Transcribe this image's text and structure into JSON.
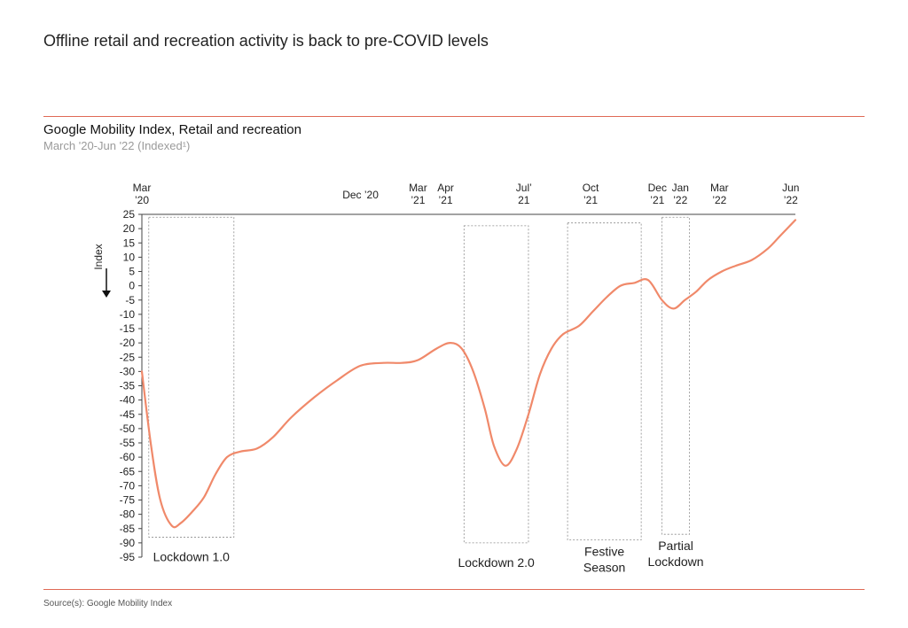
{
  "headline": "Offline retail and recreation activity is back to pre-COVID levels",
  "chart_title": "Google Mobility Index, Retail and recreation",
  "chart_subtitle": "March '20-Jun '22 (Indexed¹)",
  "source": "Source(s): Google Mobility Index",
  "colors": {
    "line": "#f0896a",
    "rule": "#e06a55",
    "box": "#8c8c8c"
  },
  "chart_data": {
    "type": "line",
    "ylabel": "Index",
    "ylim": [
      -95,
      25
    ],
    "yticks": [
      25,
      20,
      15,
      10,
      5,
      0,
      -5,
      -10,
      -15,
      -20,
      -25,
      -30,
      -35,
      -40,
      -45,
      -50,
      -55,
      -60,
      -65,
      -70,
      -75,
      -80,
      -85,
      -90,
      -95
    ],
    "top_axis_labels": [
      {
        "lines": [
          "Mar",
          "’20"
        ],
        "month": 0
      },
      {
        "lines": [
          "Dec ’20"
        ],
        "month": 9.5
      },
      {
        "lines": [
          "Mar",
          "’21"
        ],
        "month": 12
      },
      {
        "lines": [
          "Apr",
          "’21"
        ],
        "month": 13.2
      },
      {
        "lines": [
          "Jul’",
          "21"
        ],
        "month": 16.6
      },
      {
        "lines": [
          "Oct",
          "’21"
        ],
        "month": 19.5
      },
      {
        "lines": [
          "Dec",
          "’21"
        ],
        "month": 22.4
      },
      {
        "lines": [
          "Jan",
          "’22"
        ],
        "month": 23.4
      },
      {
        "lines": [
          "Mar",
          "’22"
        ],
        "month": 25.1
      },
      {
        "lines": [
          "Jun",
          "’22"
        ],
        "month": 28.2
      }
    ],
    "series": [
      {
        "x_month": [
          0,
          0.4,
          0.8,
          1.3,
          1.7,
          2.2,
          2.7,
          3.2,
          3.7,
          4.3,
          5,
          5.7,
          6.5,
          7.5,
          8.5,
          9.5,
          10.5,
          11.3,
          12,
          12.8,
          13.4,
          13.9,
          14.4,
          14.9,
          15.3,
          15.8,
          16.3,
          16.8,
          17.3,
          17.8,
          18.3,
          19,
          19.6,
          20.2,
          20.8,
          21.4,
          22,
          22.6,
          23.1,
          23.6,
          24.1,
          24.6,
          25.2,
          25.8,
          26.5,
          27.2,
          27.8,
          28.4
        ],
        "y": [
          -30,
          -56,
          -75,
          -84,
          -83,
          -79,
          -74,
          -66,
          -60,
          -58,
          -57,
          -53,
          -46,
          -39,
          -33,
          -28,
          -27,
          -27,
          -26,
          -22,
          -20,
          -22,
          -30,
          -43,
          -56,
          -63,
          -57,
          -45,
          -31,
          -22,
          -17,
          -14,
          -9,
          -4,
          0,
          1,
          2,
          -5,
          -8,
          -5,
          -2,
          2,
          5,
          7,
          9,
          13,
          18,
          23
        ]
      }
    ],
    "annotations": [
      {
        "label_lines": [
          "Lockdown 1.0"
        ],
        "start_month": 0.3,
        "end_month": 4.0,
        "y_top": 24,
        "y_bottom": -88
      },
      {
        "label_lines": [
          "Lockdown 2.0"
        ],
        "start_month": 14.0,
        "end_month": 16.8,
        "y_top": 21,
        "y_bottom": -90
      },
      {
        "label_lines": [
          "Festive",
          "Season"
        ],
        "start_month": 18.5,
        "end_month": 21.7,
        "y_top": 22,
        "y_bottom": -89
      },
      {
        "label_lines": [
          "Partial",
          "Lockdown"
        ],
        "start_month": 22.6,
        "end_month": 23.8,
        "y_top": 24,
        "y_bottom": -87
      }
    ]
  }
}
